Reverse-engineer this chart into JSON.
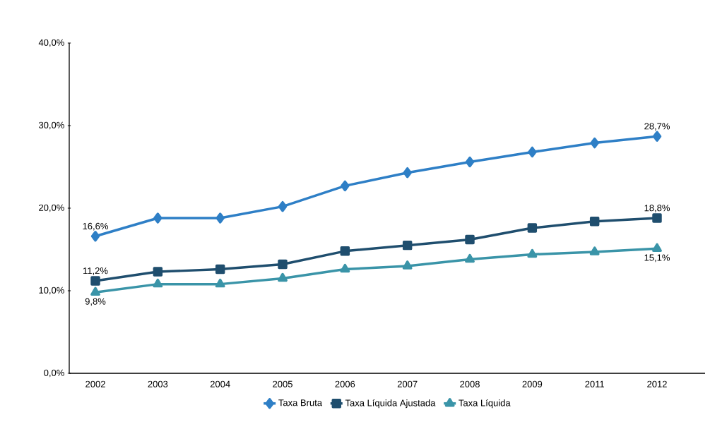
{
  "chart_data": {
    "type": "line",
    "categories": [
      "2002",
      "2003",
      "2004",
      "2005",
      "2006",
      "2007",
      "2008",
      "2009",
      "2011",
      "2012"
    ],
    "ylim": [
      0,
      40
    ],
    "yticks": [
      {
        "value": 0,
        "label": "0,0%"
      },
      {
        "value": 10,
        "label": "10,0%"
      },
      {
        "value": 20,
        "label": "20,0%"
      },
      {
        "value": 30,
        "label": "30,0%"
      },
      {
        "value": 40,
        "label": "40,0%"
      }
    ],
    "legend": "bottom",
    "line_style": "solid",
    "series": [
      {
        "name": "Taxa Bruta",
        "color": "#2e7fc6",
        "marker": "diamond",
        "values": [
          16.6,
          18.8,
          18.8,
          20.2,
          22.7,
          24.3,
          25.6,
          26.8,
          27.9,
          28.7
        ],
        "value_labels": [
          "16,6%",
          null,
          null,
          null,
          null,
          null,
          null,
          null,
          null,
          "28,7%"
        ]
      },
      {
        "name": "Taxa Líquida Ajustada",
        "color": "#1f4e6e",
        "marker": "square",
        "values": [
          11.2,
          12.3,
          12.6,
          13.2,
          14.8,
          15.5,
          16.2,
          17.6,
          18.4,
          18.8
        ],
        "value_labels": [
          "11,2%",
          null,
          null,
          null,
          null,
          null,
          null,
          null,
          null,
          "18,8%"
        ]
      },
      {
        "name": "Taxa Líquida",
        "color": "#3a94a8",
        "marker": "triangle",
        "values": [
          9.8,
          10.8,
          10.8,
          11.5,
          12.6,
          13.0,
          13.8,
          14.4,
          14.7,
          15.1
        ],
        "value_labels": [
          "9,8%",
          null,
          null,
          null,
          null,
          null,
          null,
          null,
          null,
          "15,1%"
        ]
      }
    ]
  }
}
